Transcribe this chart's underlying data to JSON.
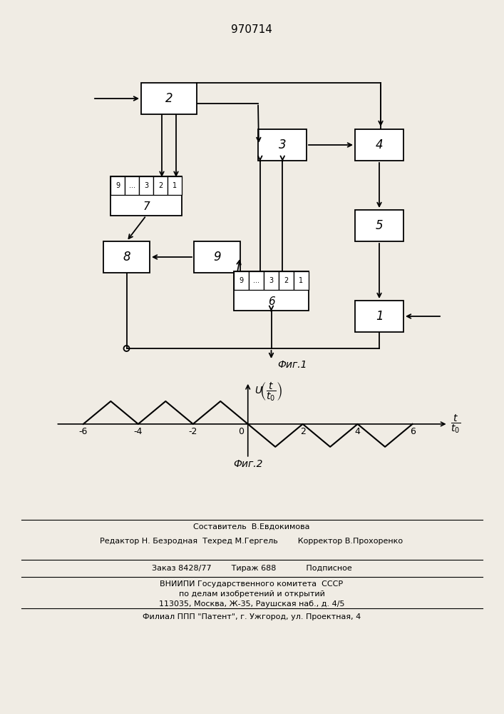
{
  "title": "970714",
  "fig1_label": "Фиг.1",
  "fig2_label": "Фиг.2",
  "footer_lines": [
    "Составитель  В.Евдокимова",
    "Редактор Н. Безродная  Техред М.Гергель        Корректор В.Прохоренко",
    "Заказ 8428/77        Тираж 688            Подписное",
    "ВНИИПИ Государственного комитета  СССР",
    "по делам изобретений и открытий",
    "113035, Москва, Ж-35, Раушская наб., д. 4/5",
    "Филиал ППП \"Патент\", г. Ужгород, ул. Проектная, 4"
  ],
  "bg_color": "#f0ece4"
}
